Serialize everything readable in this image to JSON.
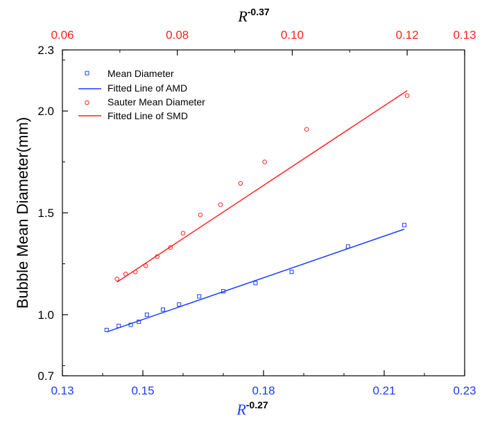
{
  "chart_data": {
    "type": "scatter",
    "ylabel": "Bubble Mean Diameter(mm)",
    "xlabel_bottom": {
      "base": "R",
      "exponent": "-0.27"
    },
    "xlabel_top": {
      "base": "R",
      "exponent": "-0.37"
    },
    "x_bottom_range": [
      0.13,
      0.23
    ],
    "x_bottom_ticks": [
      "0.13",
      "0.15",
      "0.18",
      "0.21",
      "0.23"
    ],
    "x_bottom_tick_values": [
      0.13,
      0.15,
      0.18,
      0.21,
      0.23
    ],
    "x_bottom_minor": [
      0.14,
      0.16,
      0.17,
      0.19,
      0.2,
      0.22
    ],
    "x_top_range": [
      0.06,
      0.13
    ],
    "x_top_ticks": [
      "0.06",
      "0.08",
      "0.10",
      "0.12",
      "0.13"
    ],
    "x_top_tick_values": [
      0.06,
      0.08,
      0.1,
      0.12,
      0.13
    ],
    "x_top_minor": [
      0.07,
      0.09,
      0.11
    ],
    "ylim": [
      0.7,
      2.3
    ],
    "y_ticks": [
      "0.7",
      "1.0",
      "1.5",
      "2.0",
      "2.3"
    ],
    "y_tick_values": [
      0.7,
      1.0,
      1.5,
      2.0,
      2.3
    ],
    "y_minor": [
      0.75,
      1.25,
      1.75,
      2.25
    ],
    "legend_position": "top-left",
    "colors": {
      "amd": "#1a3cff",
      "smd": "#ff2020",
      "axis_bottom": "#1a3cff",
      "axis_top": "#ff2020"
    },
    "series": [
      {
        "name": "Mean Diameter",
        "marker": "square",
        "color": "#1a3cff",
        "x": [
          0.141,
          0.144,
          0.147,
          0.149,
          0.151,
          0.155,
          0.159,
          0.164,
          0.17,
          0.178,
          0.187,
          0.201,
          0.215
        ],
        "y": [
          0.925,
          0.945,
          0.95,
          0.965,
          1.0,
          1.025,
          1.05,
          1.09,
          1.115,
          1.155,
          1.21,
          1.335,
          1.44
        ]
      },
      {
        "name": "Fitted Line of AMD",
        "marker": "line",
        "color": "#1a3cff",
        "x": [
          0.141,
          0.215
        ],
        "y": [
          0.915,
          1.42
        ]
      },
      {
        "name": "Sauter Mean Diameter",
        "marker": "circle",
        "color": "#ff2020",
        "x": [
          0.0695,
          0.071,
          0.0727,
          0.0745,
          0.0765,
          0.0788,
          0.081,
          0.084,
          0.0875,
          0.091,
          0.0952,
          0.1025,
          0.12
        ],
        "y": [
          1.175,
          1.2,
          1.21,
          1.24,
          1.285,
          1.33,
          1.4,
          1.49,
          1.54,
          1.645,
          1.75,
          1.91,
          2.075
        ]
      },
      {
        "name": "Fitted Line of SMD",
        "marker": "line",
        "color": "#ff2020",
        "x": [
          0.0695,
          0.12
        ],
        "y": [
          1.16,
          2.1
        ]
      }
    ]
  }
}
